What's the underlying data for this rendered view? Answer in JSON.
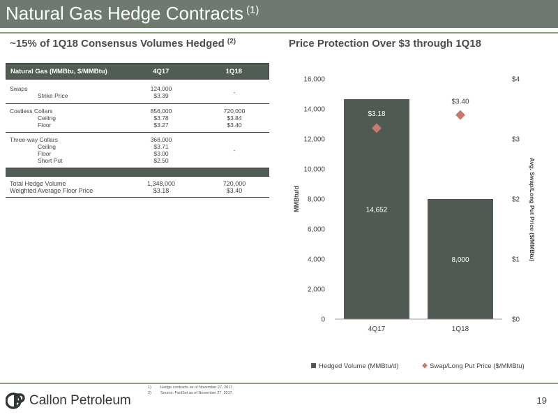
{
  "header": {
    "title": "Natural Gas Hedge Contracts",
    "title_note": "(1)"
  },
  "left_subtitle": {
    "text": "~15% of 1Q18 Consensus Volumes Hedged",
    "note": "(2)"
  },
  "right_subtitle": {
    "text": "Price Protection Over $3 through 1Q18"
  },
  "table": {
    "headers": [
      "Natural Gas (MMBtu, $/MMBtu)",
      "4Q17",
      "1Q18"
    ],
    "swaps": {
      "label": "Swaps",
      "sub": "Strike Price",
      "q4_vol": "124,000",
      "q4_price": "$3.39",
      "q1": "-"
    },
    "costless": {
      "label": "Costless Collars",
      "sub1": "Ceiling",
      "sub2": "Floor",
      "q4_vol": "856,000",
      "q4_ceiling": "$3.78",
      "q4_floor": "$3.27",
      "q1_vol": "720,000",
      "q1_ceiling": "$3.84",
      "q1_floor": "$3.40"
    },
    "threeway": {
      "label": "Three-way Collars",
      "sub1": "Ceiling",
      "sub2": "Floor",
      "sub3": "Short Put",
      "q4_vol": "368,000",
      "q4_ceiling": "$3.71",
      "q4_floor": "$3.00",
      "q4_short": "$2.50",
      "q1": "-"
    },
    "total": {
      "label1": "Total Hedge Volume",
      "label2": "Weighted Average Floor Price",
      "q4_vol": "1,348,000",
      "q4_price": "$3.18",
      "q1_vol": "720,000",
      "q1_price": "$3.40"
    }
  },
  "chart_data": {
    "type": "bar",
    "categories": [
      "4Q17",
      "1Q18"
    ],
    "series": [
      {
        "name": "Hedged Volume (MMBtu/d)",
        "type": "bar",
        "values": [
          14652,
          8000
        ],
        "labels": [
          "14,652",
          "8,000"
        ],
        "color": "#4f5a52"
      },
      {
        "name": "Swap/Long Put Price ($/MMBtu)",
        "type": "scatter",
        "axis": "right",
        "values": [
          3.18,
          3.4
        ],
        "labels": [
          "$3.18",
          "$3.40"
        ],
        "color": "#c87a6a"
      }
    ],
    "ylabel": "MMBtu/d",
    "y2label": "Avg. Swap/Long Put Price ($/MMBtu)",
    "ylim": [
      0,
      16000
    ],
    "y2lim": [
      0,
      4
    ],
    "yticks": [
      0,
      2000,
      4000,
      6000,
      8000,
      10000,
      12000,
      14000,
      16000
    ],
    "ytick_labels": [
      "0",
      "2,000",
      "4,000",
      "6,000",
      "8,000",
      "10,000",
      "12,000",
      "14,000",
      "16,000"
    ],
    "y2ticks": [
      0,
      1,
      2,
      3,
      4
    ],
    "y2tick_labels": [
      "$0",
      "$1",
      "$2",
      "$3",
      "$4"
    ],
    "legend_position": "bottom"
  },
  "footnotes": [
    {
      "num": "1)",
      "text": "Hedge contracts as of November 27, 2017."
    },
    {
      "num": "2)",
      "text": "Source: FactSet as of November 27, 2017."
    }
  ],
  "footer": {
    "company": "Callon Petroleum",
    "page": "19"
  },
  "colors": {
    "header_bg": "#6e7a70",
    "rule": "#8aa27a",
    "table_header": "#4f5d52"
  }
}
